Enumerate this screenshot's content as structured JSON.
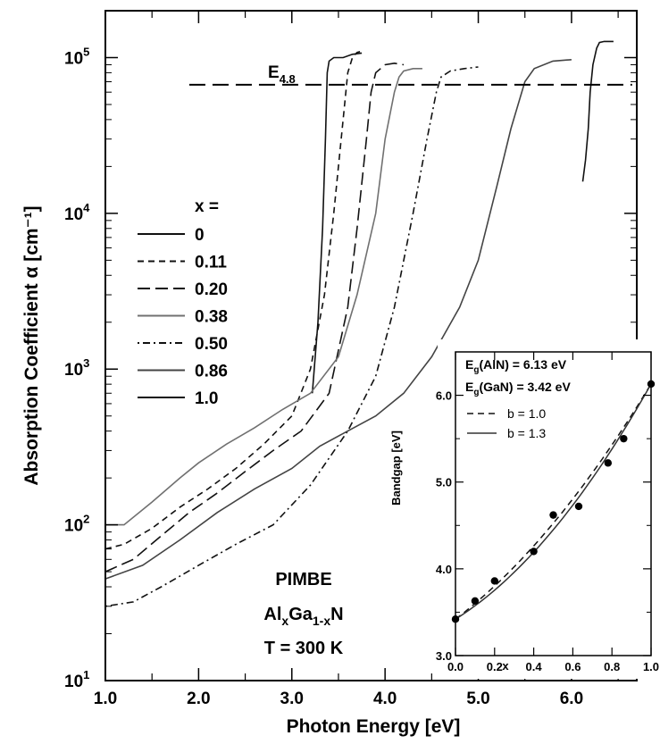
{
  "chart_data": [
    {
      "type": "line",
      "title": "",
      "xlabel": "Photon Energy  [eV]",
      "ylabel": "Absorption Coefficient  α  [cm⁻¹]",
      "xlim": [
        1.0,
        6.7
      ],
      "ylim": [
        10,
        200000
      ],
      "yscale": "log",
      "grid": false,
      "x_ticks": [
        {
          "v": 1.0,
          "label": "1.0"
        },
        {
          "v": 2.0,
          "label": "2.0"
        },
        {
          "v": 3.0,
          "label": "3.0"
        },
        {
          "v": 4.0,
          "label": "4.0"
        },
        {
          "v": 5.0,
          "label": "5.0"
        },
        {
          "v": 6.0,
          "label": "6.0"
        }
      ],
      "y_ticks": [
        {
          "v": 10,
          "base": "10",
          "exp": "1"
        },
        {
          "v": 100,
          "base": "10",
          "exp": "2"
        },
        {
          "v": 1000,
          "base": "10",
          "exp": "3"
        },
        {
          "v": 10000,
          "base": "10",
          "exp": "4"
        },
        {
          "v": 100000,
          "base": "10",
          "exp": "5"
        }
      ],
      "legend_title": "x =",
      "legend_position": "left-middle",
      "series": [
        {
          "name": "0",
          "dash": "",
          "color": "#111111",
          "x": [
            3.22,
            3.28,
            3.33,
            3.36,
            3.38,
            3.4,
            3.45,
            3.55,
            3.65,
            3.75
          ],
          "y": [
            700,
            2000,
            8000,
            30000,
            80000,
            95000,
            100000,
            100000,
            105000,
            107000
          ]
        },
        {
          "name": "0.11",
          "dash": "7,5",
          "color": "#111111",
          "x": [
            1.0,
            1.2,
            1.5,
            1.8,
            2.1,
            2.4,
            2.7,
            3.0,
            3.2,
            3.35,
            3.45,
            3.55,
            3.6,
            3.65,
            3.7,
            3.75
          ],
          "y": [
            70,
            75,
            95,
            130,
            170,
            230,
            330,
            500,
            1000,
            3000,
            10000,
            40000,
            80000,
            100000,
            108000,
            110000
          ]
        },
        {
          "name": "0.20",
          "dash": "14,6",
          "color": "#111111",
          "x": [
            1.0,
            1.3,
            1.6,
            1.9,
            2.2,
            2.5,
            2.8,
            3.1,
            3.4,
            3.6,
            3.7,
            3.8,
            3.85,
            3.9,
            4.0,
            4.1,
            4.2
          ],
          "y": [
            50,
            60,
            85,
            120,
            160,
            220,
            300,
            400,
            700,
            2500,
            8000,
            30000,
            60000,
            80000,
            90000,
            92000,
            90000
          ]
        },
        {
          "name": "0.38",
          "dash": "",
          "color": "#707070",
          "x": [
            1.0,
            1.2,
            1.5,
            1.8,
            2.0,
            2.3,
            2.6,
            2.9,
            3.2,
            3.5,
            3.7,
            3.9,
            4.0,
            4.1,
            4.15,
            4.2,
            4.3,
            4.4
          ],
          "y": [
            100,
            100,
            140,
            200,
            250,
            330,
            420,
            550,
            700,
            1200,
            3000,
            10000,
            30000,
            60000,
            75000,
            82000,
            85000,
            85000
          ]
        },
        {
          "name": "0.50",
          "dash": "2,4,8,4",
          "color": "#111111",
          "x": [
            1.0,
            1.3,
            1.6,
            2.0,
            2.4,
            2.8,
            3.2,
            3.6,
            3.9,
            4.1,
            4.3,
            4.45,
            4.55,
            4.6,
            4.7,
            4.85,
            5.0
          ],
          "y": [
            30,
            32,
            40,
            55,
            75,
            100,
            180,
            400,
            900,
            2500,
            10000,
            30000,
            60000,
            75000,
            82000,
            85000,
            87000
          ]
        },
        {
          "name": "0.86",
          "dash": "",
          "color": "#444444",
          "x": [
            1.0,
            1.4,
            1.8,
            2.2,
            2.6,
            3.0,
            3.3,
            3.6,
            3.9,
            4.2,
            4.5,
            4.8,
            5.0,
            5.2,
            5.35,
            5.5,
            5.6,
            5.8,
            6.0
          ],
          "y": [
            45,
            55,
            80,
            120,
            170,
            230,
            320,
            400,
            500,
            700,
            1200,
            2500,
            5000,
            15000,
            35000,
            70000,
            85000,
            95000,
            97000
          ]
        },
        {
          "name": "1.0",
          "dash": "",
          "color": "#111111",
          "x": [
            6.12,
            6.15,
            6.18,
            6.2,
            6.23,
            6.27,
            6.3,
            6.35,
            6.45
          ],
          "y": [
            16000,
            22000,
            35000,
            60000,
            90000,
            115000,
            125000,
            127000,
            127000
          ]
        }
      ],
      "annotations": [
        {
          "id": "e48",
          "text": "E",
          "sub": "4.8",
          "y": 67000,
          "x_start": 1.9,
          "x_end": 6.65
        }
      ],
      "text_block": [
        "PIMBE",
        "Al",
        "x",
        "Ga",
        "1-x",
        "N",
        "T = 300 K"
      ]
    },
    {
      "type": "scatter",
      "title": "",
      "xlabel": "x",
      "ylabel": "Bandgap  [eV]",
      "xlim": [
        0,
        1.0
      ],
      "ylim": [
        3.0,
        6.5
      ],
      "x_ticks": [
        "0.0",
        "0.2",
        "0.4",
        "0.6",
        "0.8",
        "1.0"
      ],
      "y_ticks": [
        "3.0",
        "4.0",
        "5.0",
        "6.0"
      ],
      "points": {
        "x": [
          0.0,
          0.1,
          0.2,
          0.4,
          0.5,
          0.63,
          0.78,
          0.86,
          1.0
        ],
        "y": [
          3.42,
          3.63,
          3.86,
          4.2,
          4.62,
          4.72,
          5.22,
          5.5,
          6.13
        ]
      },
      "fit_lines": [
        {
          "name": "b = 1.0",
          "bowing": 1.0,
          "dash": "7,5",
          "color": "#111111"
        },
        {
          "name": "b = 1.3",
          "bowing": 1.3,
          "dash": "",
          "color": "#333333"
        }
      ],
      "params": [
        {
          "pre": "E",
          "sub": "g",
          "post": "(AlN)  = 6.13 eV",
          "value": 6.13
        },
        {
          "pre": "E",
          "sub": "g",
          "post": "(GaN) = 3.42 eV",
          "value": 3.42
        }
      ]
    }
  ]
}
